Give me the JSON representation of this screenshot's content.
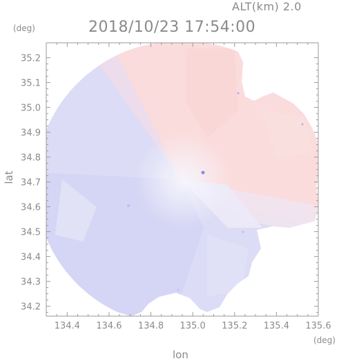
{
  "header": {
    "altitude_label": "ALT(km) 2.0",
    "timestamp": "2018/10/23 17:54:00"
  },
  "axes": {
    "y_unit": "(deg)",
    "x_unit": "(deg)",
    "y_title": "lat",
    "x_title": "lon",
    "frame_color": "#9a9a9a"
  },
  "chart_data": {
    "type": "heatmap",
    "description_kind": "radar doppler velocity PPI",
    "xlabel": "lon",
    "ylabel": "lat",
    "xlim": [
      134.3,
      135.6
    ],
    "ylim": [
      34.16,
      35.26
    ],
    "x_ticks": [
      "134.4",
      "134.6",
      "134.8",
      "135.0",
      "135.2",
      "135.4",
      "135.6"
    ],
    "y_ticks": [
      "35.2",
      "35.1",
      "35.0",
      "34.9",
      "34.8",
      "34.7",
      "34.6",
      "34.5",
      "34.4",
      "34.3",
      "34.2"
    ],
    "x_tick_values": [
      134.4,
      134.6,
      134.8,
      135.0,
      135.2,
      135.4,
      135.6
    ],
    "y_tick_values": [
      35.2,
      35.1,
      35.0,
      34.9,
      34.8,
      34.7,
      34.6,
      34.5,
      34.4,
      34.3,
      34.2
    ],
    "radar_center": {
      "lon": 134.98,
      "lat": 34.72
    },
    "colors": {
      "approaching": "#dcdcf6",
      "receding": "#fbdcdc",
      "near_zero": "#f3f3fb"
    }
  }
}
